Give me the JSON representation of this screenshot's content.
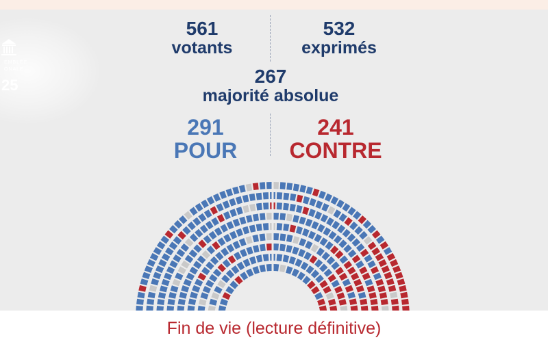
{
  "logo": {
    "line1": "EMBLÉE",
    "line2": "ONALE",
    "year": "25"
  },
  "vote": {
    "votants": {
      "value": "561",
      "label": "votants"
    },
    "exprimes": {
      "value": "532",
      "label": "exprimés"
    },
    "majorite": {
      "value": "267",
      "label": "majorité absolue"
    },
    "pour": {
      "value": "291",
      "label": "POUR"
    },
    "contre": {
      "value": "241",
      "label": "CONTRE"
    }
  },
  "seat_counts": {
    "pour": 291,
    "contre": 241,
    "non_exprimes": 29
  },
  "footer": {
    "title": "Fin de vie (lecture définitive)"
  },
  "colors": {
    "navy": "#1f3b6b",
    "pour": "#4a77b6",
    "contre": "#b8282f",
    "neutral": "#c9c9c9",
    "panel": "#ececec"
  }
}
